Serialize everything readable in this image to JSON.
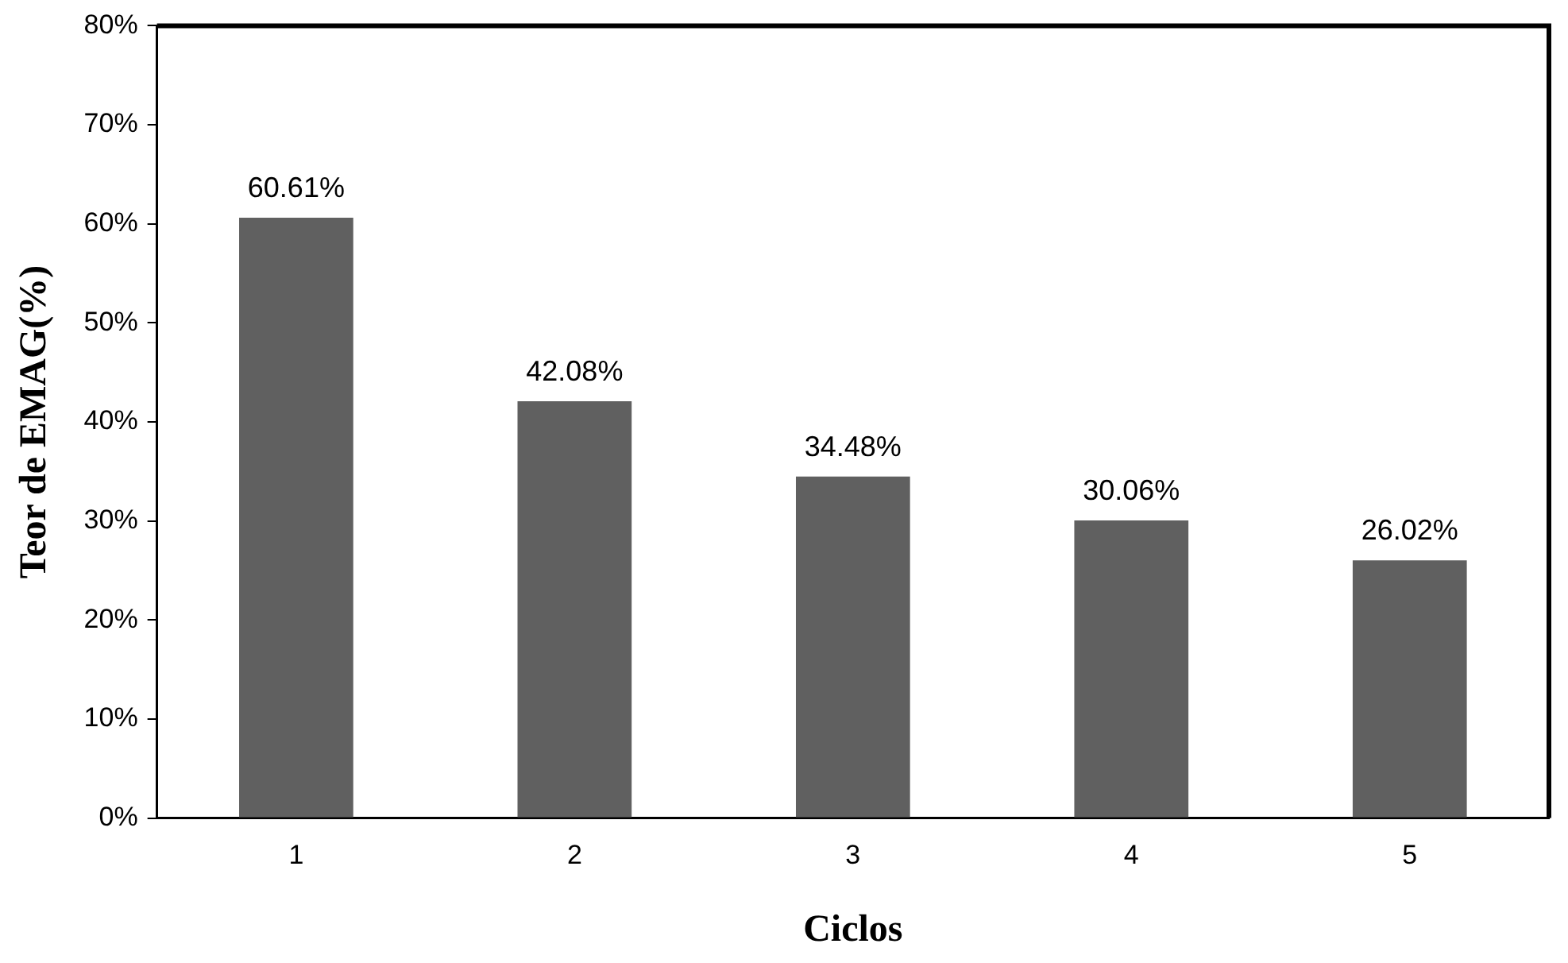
{
  "chart_data": {
    "type": "bar",
    "xlabel": "Ciclos",
    "ylabel": "Teor de EMAG(%)",
    "categories": [
      "1",
      "2",
      "3",
      "4",
      "5"
    ],
    "values": [
      60.61,
      42.08,
      34.48,
      30.06,
      26.02
    ],
    "value_labels": [
      "60.61%",
      "42.08%",
      "34.48%",
      "30.06%",
      "26.02%"
    ],
    "color": "#606060",
    "ylim": [
      0,
      80
    ],
    "yticks": [
      {
        "value": 0,
        "label": "0%"
      },
      {
        "value": 10,
        "label": "10%"
      },
      {
        "value": 20,
        "label": "20%"
      },
      {
        "value": 30,
        "label": "30%"
      },
      {
        "value": 40,
        "label": "40%"
      },
      {
        "value": 50,
        "label": "50%"
      },
      {
        "value": 60,
        "label": "60%"
      },
      {
        "value": 70,
        "label": "70%"
      },
      {
        "value": 80,
        "label": "80%"
      }
    ],
    "grid": false,
    "legend": false
  }
}
